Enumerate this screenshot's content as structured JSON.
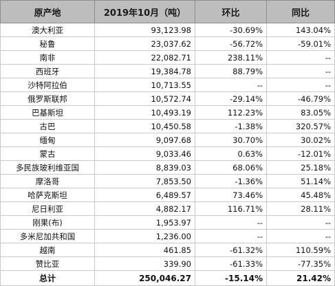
{
  "header": {
    "col_origin": "原产地",
    "col_volume": "2019年10月（吨）",
    "col_mom": "环比",
    "col_yoy": "同比"
  },
  "rows": [
    {
      "country": "澳大利亚",
      "volume": "93,123.98",
      "mom": "-30.69%",
      "yoy": "143.04%"
    },
    {
      "country": "秘鲁",
      "volume": "23,037.62",
      "mom": "-56.72%",
      "yoy": "-59.01%"
    },
    {
      "country": "南非",
      "volume": "22,082.71",
      "mom": "238.11%",
      "yoy": "--"
    },
    {
      "country": "西班牙",
      "volume": "19,384.78",
      "mom": "88.79%",
      "yoy": "--"
    },
    {
      "country": "沙特阿拉伯",
      "volume": "10,713.55",
      "mom": "--",
      "yoy": "--"
    },
    {
      "country": "俄罗斯联邦",
      "volume": "10,572.74",
      "mom": "-29.14%",
      "yoy": "-46.79%"
    },
    {
      "country": "巴基斯坦",
      "volume": "10,493.19",
      "mom": "112.23%",
      "yoy": "83.05%"
    },
    {
      "country": "古巴",
      "volume": "10,450.58",
      "mom": "-1.38%",
      "yoy": "320.57%"
    },
    {
      "country": "缅甸",
      "volume": "9,097.68",
      "mom": "30.70%",
      "yoy": "30.02%"
    },
    {
      "country": "蒙古",
      "volume": "9,033.46",
      "mom": "0.63%",
      "yoy": "-12.01%"
    },
    {
      "country": "多民族玻利维亚国",
      "volume": "8,839.03",
      "mom": "68.06%",
      "yoy": "25.18%"
    },
    {
      "country": "摩洛哥",
      "volume": "7,853.50",
      "mom": "-1.36%",
      "yoy": "51.14%"
    },
    {
      "country": "哈萨克斯坦",
      "volume": "6,489.57",
      "mom": "73.46%",
      "yoy": "45.48%"
    },
    {
      "country": "尼日利亚",
      "volume": "4,882.17",
      "mom": "116.71%",
      "yoy": "28.11%"
    },
    {
      "country": "刚果(布)",
      "volume": "1,953.97",
      "mom": "--",
      "yoy": "--"
    },
    {
      "country": "多米尼加共和国",
      "volume": "1,236.00",
      "mom": "--",
      "yoy": "--"
    },
    {
      "country": "越南",
      "volume": "461.85",
      "mom": "-61.32%",
      "yoy": "110.59%"
    },
    {
      "country": "赞比亚",
      "volume": "339.90",
      "mom": "-61.33%",
      "yoy": "-77.35%"
    }
  ],
  "total": {
    "country": "总计",
    "volume": "250,046.27",
    "mom": "-15.14%",
    "yoy": "21.42%"
  },
  "colors": {
    "header_bg": "#bdbdbd",
    "border": "#c8c8c8"
  }
}
